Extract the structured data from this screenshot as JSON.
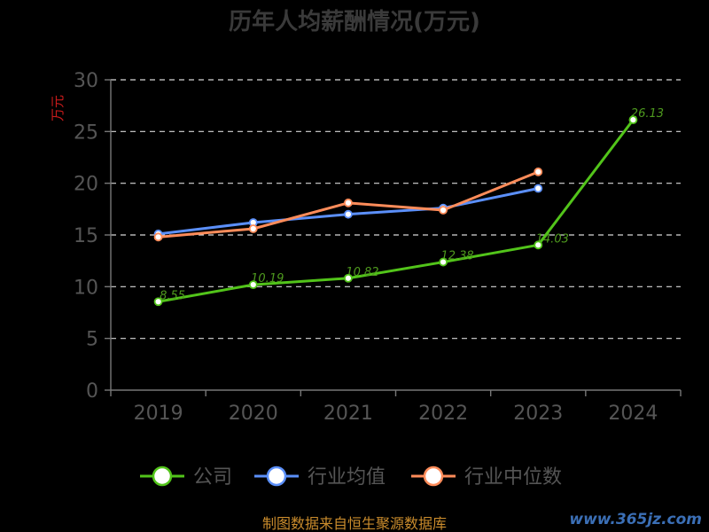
{
  "chart_data": {
    "type": "line",
    "title": "历年人均薪酬情况(万元)",
    "ylabel": "万元",
    "ylim": [
      0,
      30
    ],
    "yticks": [
      0,
      5,
      10,
      15,
      20,
      25,
      30
    ],
    "categories": [
      "2019",
      "2020",
      "2021",
      "2022",
      "2023",
      "2024"
    ],
    "grid": true,
    "legend_position": "bottom",
    "series": [
      {
        "name": "公司",
        "color": "#52c41a",
        "values": [
          8.55,
          10.19,
          10.82,
          12.38,
          14.03,
          26.13
        ]
      },
      {
        "name": "行业均值",
        "color": "#5b8ff9",
        "values": [
          15.1,
          16.2,
          17.0,
          17.6,
          19.5,
          null
        ]
      },
      {
        "name": "行业中位数",
        "color": "#ff8c5a",
        "values": [
          14.8,
          15.6,
          18.1,
          17.4,
          21.1,
          null
        ]
      }
    ]
  },
  "footer": {
    "source": "制图数据来自恒生聚源数据库",
    "watermark": "www.365jz.com"
  }
}
